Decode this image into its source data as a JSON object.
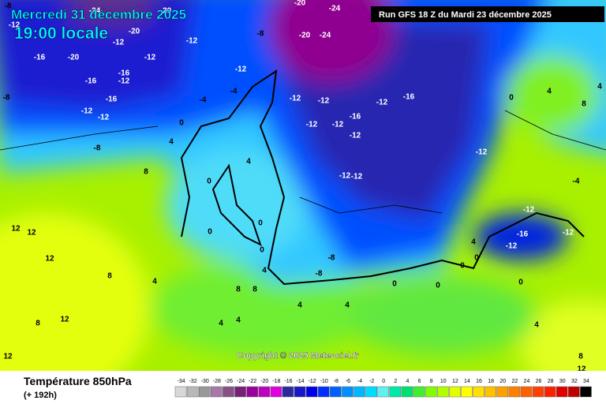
{
  "header": {
    "date": "Mercredi 31 décembre 2025",
    "time": "19:00 locale",
    "run": "Run GFS 18 Z du Mardi 23 décembre 2025"
  },
  "map": {
    "copyright": "Copyright © 2025 Meteociel.fr",
    "isotherm_labels": [
      -8,
      -12,
      -24,
      -20,
      -20,
      -12,
      -16,
      -20,
      -12,
      -16,
      -16,
      -12,
      -8,
      -16,
      -12,
      -12,
      -8,
      -12,
      -12,
      -8,
      -20,
      -24,
      -20,
      -24,
      -12,
      -12,
      -12,
      -16,
      -16,
      -12,
      -12,
      -12,
      -12,
      -12,
      -12,
      -4,
      -4,
      0,
      4,
      8,
      12,
      12,
      12,
      8,
      4,
      12,
      12,
      8,
      4,
      0,
      0,
      0,
      0,
      -8,
      -8,
      4,
      8,
      8,
      4,
      4,
      4,
      4,
      0,
      4,
      8,
      4,
      -4,
      -12,
      -12,
      -16,
      -12,
      4,
      0,
      0,
      4,
      8,
      12,
      0,
      0,
      0
    ]
  },
  "footer": {
    "title": "Température 850hPa",
    "lead": "(+ 192h)"
  },
  "legend": {
    "values": [
      -34,
      -32,
      -30,
      -28,
      -26,
      -24,
      -22,
      -20,
      -18,
      -16,
      -14,
      -12,
      -10,
      -8,
      -6,
      -4,
      -2,
      0,
      2,
      4,
      6,
      8,
      10,
      12,
      14,
      16,
      18,
      20,
      22,
      24,
      26,
      28,
      30,
      32,
      34
    ],
    "colors": [
      "#d8d8d8",
      "#b8b8b8",
      "#989898",
      "#a878a8",
      "#885088",
      "#782078",
      "#9a009a",
      "#c000c0",
      "#e000e0",
      "#2a2aa0",
      "#1818c8",
      "#0000e8",
      "#0030ff",
      "#0060ff",
      "#0090ff",
      "#00b8ff",
      "#00dcff",
      "#60f0f0",
      "#00e8a8",
      "#00e070",
      "#40f030",
      "#80ff00",
      "#b0ff00",
      "#e0ff00",
      "#ffff00",
      "#ffe000",
      "#ffc000",
      "#ffa000",
      "#ff8000",
      "#ff6000",
      "#ff4000",
      "#ff2000",
      "#e00000",
      "#c00000",
      "#000000"
    ]
  }
}
